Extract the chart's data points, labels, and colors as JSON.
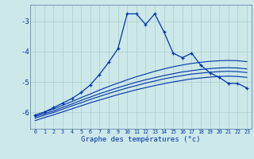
{
  "title": "Graphe des températures (°c)",
  "bg_color": "#cce8e8",
  "grid_color": "#aacccc",
  "line_color": "#0033aa",
  "xmin": -0.5,
  "xmax": 23.5,
  "ymin": -6.55,
  "ymax": -2.45,
  "yticks": [
    -6,
    -5,
    -4,
    -3
  ],
  "xticks": [
    0,
    1,
    2,
    3,
    4,
    5,
    6,
    7,
    8,
    9,
    10,
    11,
    12,
    13,
    14,
    15,
    16,
    17,
    18,
    19,
    20,
    21,
    22,
    23
  ],
  "curve_main": [
    -6.1,
    -6.0,
    -5.85,
    -5.7,
    -5.55,
    -5.35,
    -5.1,
    -4.75,
    -4.35,
    -3.9,
    -2.75,
    -2.75,
    -3.1,
    -2.75,
    -3.35,
    -4.05,
    -4.2,
    -4.05,
    -4.45,
    -4.7,
    -4.85,
    -5.05,
    -5.05,
    -5.2
  ],
  "curve_stat1": [
    -6.1,
    -6.0,
    -5.9,
    -5.77,
    -5.65,
    -5.52,
    -5.4,
    -5.27,
    -5.15,
    -5.04,
    -4.93,
    -4.83,
    -4.74,
    -4.65,
    -4.57,
    -4.5,
    -4.44,
    -4.39,
    -4.35,
    -4.32,
    -4.3,
    -4.29,
    -4.3,
    -4.33
  ],
  "curve_stat2": [
    -6.15,
    -6.05,
    -5.96,
    -5.84,
    -5.73,
    -5.61,
    -5.5,
    -5.39,
    -5.29,
    -5.19,
    -5.1,
    -5.01,
    -4.93,
    -4.86,
    -4.79,
    -4.73,
    -4.67,
    -4.63,
    -4.59,
    -4.56,
    -4.54,
    -4.53,
    -4.54,
    -4.57
  ],
  "curve_stat3": [
    -6.2,
    -6.1,
    -6.01,
    -5.9,
    -5.79,
    -5.69,
    -5.58,
    -5.48,
    -5.38,
    -5.29,
    -5.2,
    -5.12,
    -5.04,
    -4.97,
    -4.9,
    -4.84,
    -4.79,
    -4.74,
    -4.71,
    -4.68,
    -4.66,
    -4.65,
    -4.66,
    -4.69
  ],
  "curve_stat4": [
    -6.28,
    -6.18,
    -6.09,
    -5.99,
    -5.89,
    -5.79,
    -5.69,
    -5.6,
    -5.51,
    -5.42,
    -5.34,
    -5.26,
    -5.19,
    -5.12,
    -5.06,
    -5.0,
    -4.95,
    -4.9,
    -4.87,
    -4.84,
    -4.82,
    -4.81,
    -4.82,
    -4.85
  ]
}
